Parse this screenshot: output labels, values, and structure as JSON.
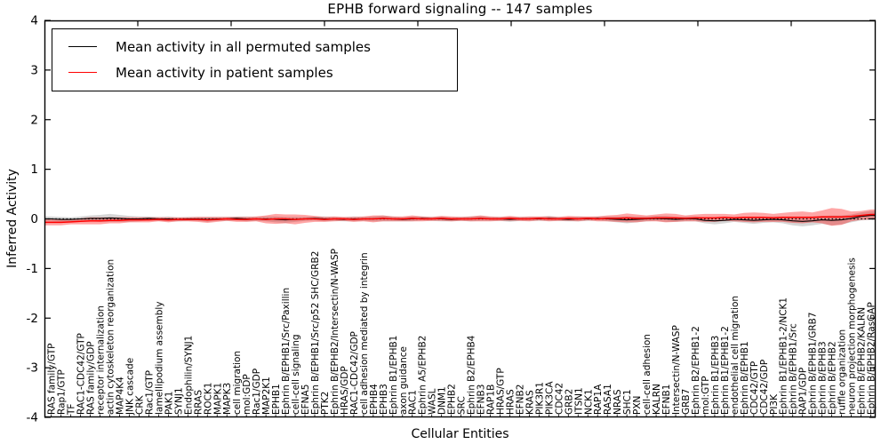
{
  "figure": {
    "background": "#ffffff"
  },
  "chart_data": {
    "type": "line",
    "title": "EPHB forward signaling -- 147 samples",
    "xlabel": "Cellular Entities",
    "ylabel": "Inferred Activity",
    "ylim": [
      -4,
      4
    ],
    "yticks": [
      -4,
      -3,
      -2,
      -1,
      0,
      1,
      2,
      3,
      4
    ],
    "grid": false,
    "legend_position": "upper left",
    "zero_line_style": "dotted",
    "categories": [
      "RAS family/GTP",
      "Rap1/GTP",
      "TF",
      "RAC1-CDC42/GTP",
      "RAS family/GDP",
      "receptor internalization",
      "actin cytoskeleton reorganization",
      "MAP4K4",
      "JNK cascade",
      "CRK",
      "Rac1/GTP",
      "lamellipodium assembly",
      "PAK1",
      "SYNJ1",
      "Endophilin/SYNJ1",
      "RRAS",
      "ROCK1",
      "MAPK1",
      "MAPK3",
      "cell migration",
      "mol:GDP",
      "Rac1/GDP",
      "MAP2K1",
      "EPHB1",
      "Ephrin B/EPHB1/Src/Paxillin",
      "cell-cell signaling",
      "EFNA5",
      "Ephrin B/EPHB1/Src/p52 SHC/GRB2",
      "PTK2",
      "Ephrin B/EPHB2/Intersectin/N-WASP",
      "HRAS/GDP",
      "RAC1-CDC42/GDP",
      "cell adhesion mediated by integrin",
      "EPHB4",
      "EPHB3",
      "Ephrin B1/EPHB1",
      "axon guidance",
      "RAC1",
      "Ephrin A5/EPHB2",
      "WASL",
      "DNM1",
      "EPHB2",
      "SRC",
      "Ephrin B2/EPHB4",
      "EFNB3",
      "RAP1B",
      "HRAS/GTP",
      "HRAS",
      "EFNB2",
      "KRAS",
      "PIK3R1",
      "PIK3CA",
      "CDC42",
      "GRB2",
      "ITSN1",
      "NCK1",
      "RAP1A",
      "RASA1",
      "NRAS",
      "SHC1",
      "PXN",
      "cell-cell adhesion",
      "KALRN",
      "EFNB1",
      "Intersectin/N-WASP",
      "GRB7",
      "Ephrin B2/EPHB1-2",
      "mol:GTP",
      "Ephrin B1/EPHB3",
      "Ephrin B1/EPHB1-2",
      "endothelial cell migration",
      "Ephrin B/EPHB1",
      "CDC42/GTP",
      "CDC42/GDP",
      "PI3K",
      "Ephrin B1/EPHB1-2/NCK1",
      "Ephrin B/EPHB1/Src",
      "RAP1/GDP",
      "Ephrin B/EPHB1/GRB7",
      "Ephrin B/EPHB3",
      "Ephrin B/EPHB2",
      "ruffle organization",
      "neuron projection morphogenesis",
      "Ephrin B/EPHB2/KALRN",
      "Ephrin B/EPHB2/RasGAP"
    ],
    "series": [
      {
        "name": "Mean activity in all permuted samples",
        "color": "#000000",
        "band_color": "#999999",
        "band_opacity": 0.4,
        "values": [
          0.0,
          -0.01,
          -0.01,
          0.0,
          0.01,
          0.01,
          0.02,
          0.01,
          0.0,
          0.0,
          0.01,
          0.0,
          0.0,
          -0.01,
          0.0,
          0.0,
          -0.01,
          0.0,
          0.0,
          0.01,
          0.0,
          0.0,
          0.0,
          -0.01,
          -0.02,
          -0.01,
          0.0,
          0.01,
          0.0,
          0.0,
          -0.01,
          0.0,
          0.0,
          0.0,
          0.01,
          0.0,
          -0.01,
          0.0,
          0.01,
          0.0,
          0.0,
          -0.01,
          0.0,
          0.0,
          0.01,
          0.0,
          0.0,
          -0.01,
          0.0,
          0.0,
          0.0,
          0.01,
          0.0,
          -0.01,
          0.0,
          0.0,
          0.01,
          0.0,
          -0.01,
          -0.02,
          -0.01,
          0.0,
          0.01,
          0.0,
          -0.01,
          0.0,
          0.0,
          -0.03,
          -0.04,
          -0.03,
          -0.01,
          -0.02,
          -0.03,
          -0.02,
          -0.01,
          -0.02,
          -0.04,
          -0.05,
          -0.04,
          -0.02,
          -0.03,
          -0.02,
          0.01,
          0.05,
          0.07
        ],
        "band_halfwidth": [
          0.05,
          0.05,
          0.04,
          0.05,
          0.06,
          0.07,
          0.08,
          0.07,
          0.06,
          0.05,
          0.04,
          0.04,
          0.05,
          0.04,
          0.04,
          0.04,
          0.05,
          0.04,
          0.04,
          0.04,
          0.05,
          0.04,
          0.05,
          0.06,
          0.06,
          0.05,
          0.04,
          0.04,
          0.05,
          0.04,
          0.04,
          0.05,
          0.04,
          0.05,
          0.06,
          0.05,
          0.04,
          0.05,
          0.04,
          0.04,
          0.05,
          0.04,
          0.04,
          0.05,
          0.05,
          0.04,
          0.04,
          0.05,
          0.04,
          0.04,
          0.04,
          0.05,
          0.04,
          0.04,
          0.05,
          0.04,
          0.04,
          0.05,
          0.06,
          0.07,
          0.06,
          0.05,
          0.05,
          0.06,
          0.05,
          0.05,
          0.05,
          0.06,
          0.07,
          0.06,
          0.05,
          0.06,
          0.07,
          0.06,
          0.06,
          0.07,
          0.09,
          0.1,
          0.09,
          0.08,
          0.1,
          0.09,
          0.08,
          0.08,
          0.09
        ]
      },
      {
        "name": "Mean activity in patient samples",
        "color": "#ff0000",
        "band_color": "#ff0000",
        "band_opacity": 0.35,
        "values": [
          -0.07,
          -0.07,
          -0.06,
          -0.05,
          -0.04,
          -0.04,
          -0.03,
          -0.03,
          -0.02,
          -0.02,
          -0.02,
          -0.01,
          -0.02,
          -0.01,
          -0.01,
          -0.01,
          -0.02,
          -0.01,
          0.0,
          -0.01,
          -0.01,
          0.0,
          -0.01,
          0.0,
          0.0,
          -0.01,
          0.0,
          0.0,
          -0.01,
          0.0,
          0.0,
          -0.01,
          0.0,
          0.0,
          0.01,
          0.0,
          0.0,
          0.01,
          0.0,
          0.0,
          0.01,
          0.0,
          0.0,
          0.0,
          0.01,
          0.0,
          0.0,
          0.01,
          0.0,
          0.0,
          0.01,
          0.0,
          0.0,
          0.01,
          0.0,
          0.01,
          0.0,
          0.01,
          0.01,
          0.02,
          0.01,
          0.01,
          0.02,
          0.02,
          0.02,
          0.01,
          0.02,
          0.02,
          0.02,
          0.03,
          0.02,
          0.03,
          0.03,
          0.03,
          0.02,
          0.03,
          0.03,
          0.03,
          0.03,
          0.04,
          0.04,
          0.04,
          0.05,
          0.07,
          0.09
        ],
        "band_halfwidth": [
          0.06,
          0.06,
          0.05,
          0.06,
          0.07,
          0.07,
          0.06,
          0.06,
          0.05,
          0.05,
          0.05,
          0.04,
          0.05,
          0.04,
          0.04,
          0.05,
          0.06,
          0.05,
          0.04,
          0.05,
          0.05,
          0.05,
          0.08,
          0.1,
          0.09,
          0.1,
          0.08,
          0.06,
          0.05,
          0.05,
          0.04,
          0.05,
          0.05,
          0.07,
          0.06,
          0.05,
          0.05,
          0.06,
          0.05,
          0.04,
          0.05,
          0.05,
          0.04,
          0.05,
          0.06,
          0.05,
          0.04,
          0.05,
          0.04,
          0.05,
          0.04,
          0.05,
          0.04,
          0.05,
          0.05,
          0.04,
          0.05,
          0.06,
          0.07,
          0.09,
          0.08,
          0.06,
          0.07,
          0.09,
          0.08,
          0.06,
          0.07,
          0.08,
          0.08,
          0.07,
          0.07,
          0.09,
          0.1,
          0.09,
          0.08,
          0.09,
          0.11,
          0.12,
          0.1,
          0.13,
          0.18,
          0.16,
          0.1,
          0.09,
          0.1
        ]
      }
    ]
  }
}
